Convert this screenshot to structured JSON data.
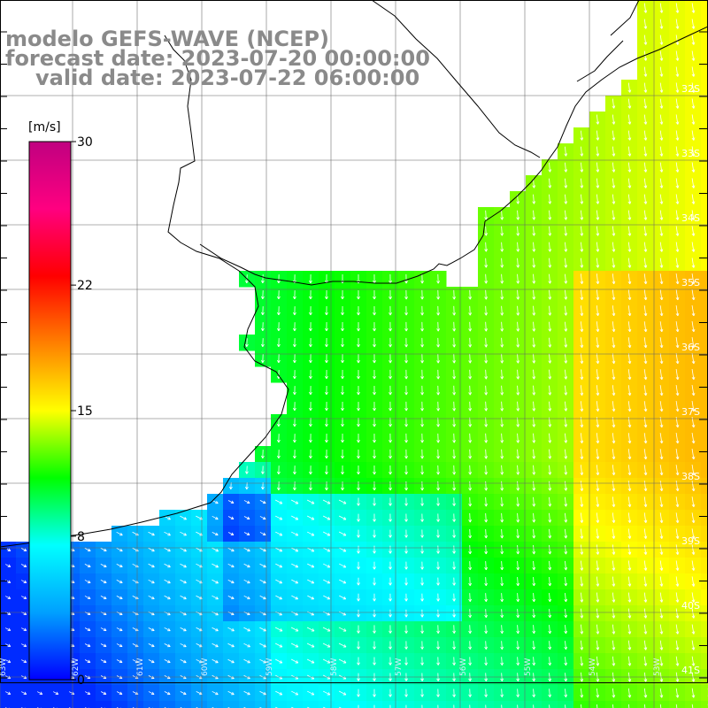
{
  "title": {
    "line1": "modelo GEFS-WAVE (NCEP)",
    "line2": "forecast date: 2023-07-20 00:00:00",
    "line3": "valid date: 2023-07-22 06:00:00"
  },
  "colorbar": {
    "unit": "[m/s]",
    "ticks": [
      "30",
      "22",
      "15",
      "8",
      "0"
    ],
    "tick_values": [
      30,
      22,
      15,
      8,
      0
    ],
    "range": [
      0,
      30
    ],
    "stops": [
      "#0000ff",
      "#00a0ff",
      "#00ffff",
      "#00ff00",
      "#ffff00",
      "#ff8000",
      "#ff0000",
      "#ff0080",
      "#c00080"
    ]
  },
  "lat_labels": [
    "32S",
    "33S",
    "34S",
    "35S",
    "36S",
    "37S",
    "38S",
    "39S",
    "40S",
    "41S"
  ],
  "lon_labels": [
    "63W",
    "62W",
    "61W",
    "60W",
    "59W",
    "58W",
    "57W",
    "56W",
    "55W",
    "54W",
    "53W"
  ],
  "field": {
    "variable": "wind speed and direction",
    "units": "m/s"
  }
}
